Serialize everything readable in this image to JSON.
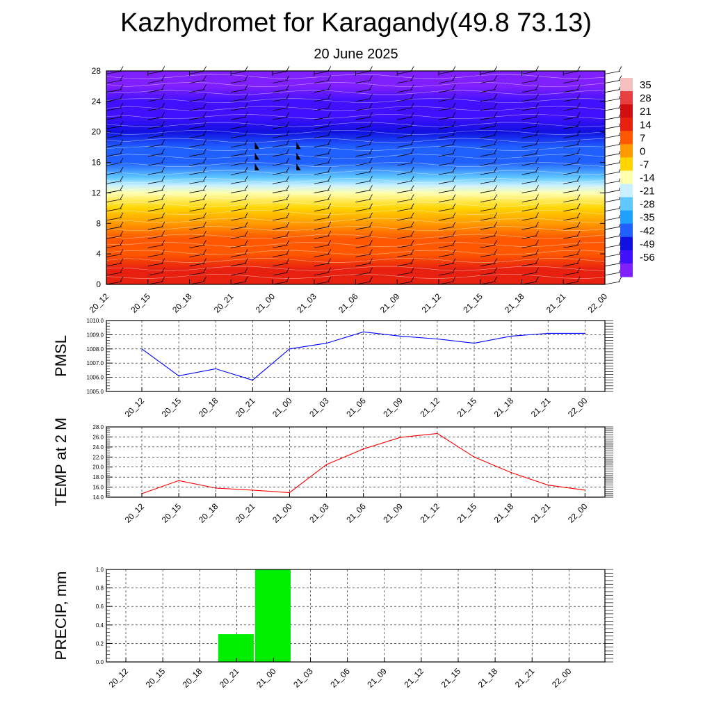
{
  "title": "Kazhydromet for Karagandy(49.8 73.13)",
  "subtitle": "20 June 2025",
  "chart_data": [
    {
      "type": "heatmap",
      "x_tick_labels": [
        "20_12",
        "20_15",
        "20_18",
        "20_21",
        "21_00",
        "21_03",
        "21_06",
        "21_09",
        "21_12",
        "21_15",
        "21_18",
        "21_21",
        "22_00"
      ],
      "y_ticks": [
        0,
        4,
        8,
        12,
        16,
        20,
        24,
        28
      ],
      "ylim": [
        0,
        28
      ],
      "colorbar_labels": [
        "35",
        "28",
        "21",
        "14",
        "7",
        "0",
        "-7",
        "-14",
        "-21",
        "-28",
        "-35",
        "-42",
        "-49",
        "-56"
      ],
      "colorbar_colors": [
        "#f5c0c0",
        "#e84040",
        "#d01010",
        "#e82010",
        "#ff5800",
        "#ff9a00",
        "#ffd400",
        "#ffffb0",
        "#c8f0ff",
        "#60c8ff",
        "#20a0ff",
        "#2060ff",
        "#1010e0",
        "#4010ff",
        "#8020ff"
      ],
      "temperature_profile": [
        {
          "y": 0,
          "value": 17
        },
        {
          "y": 2,
          "value": 14
        },
        {
          "y": 4,
          "value": 10
        },
        {
          "y": 6,
          "value": 6
        },
        {
          "y": 8,
          "value": 2
        },
        {
          "y": 10,
          "value": -3
        },
        {
          "y": 12,
          "value": -12
        },
        {
          "y": 13,
          "value": -18
        },
        {
          "y": 14,
          "value": -26
        },
        {
          "y": 16,
          "value": -34
        },
        {
          "y": 18,
          "value": -40
        },
        {
          "y": 20,
          "value": -44
        },
        {
          "y": 22,
          "value": -47
        },
        {
          "y": 24,
          "value": -50
        },
        {
          "y": 26,
          "value": -54
        },
        {
          "y": 28,
          "value": -56
        }
      ],
      "wind_barb_columns": [
        "20_12",
        "20_15",
        "20_18",
        "20_21",
        "21_00",
        "21_03",
        "21_06",
        "21_09",
        "21_12",
        "21_15",
        "21_18",
        "21_21",
        "22_00"
      ],
      "colors": {
        "contour": "#ffffff",
        "barb": "#000000"
      }
    },
    {
      "type": "line",
      "ylabel": "PMSL",
      "categories": [
        "20_12",
        "20_15",
        "20_18",
        "20_21",
        "21_00",
        "21_03",
        "21_06",
        "21_09",
        "21_12",
        "21_15",
        "21_18",
        "21_21",
        "22_00"
      ],
      "values": [
        1008.0,
        1006.1,
        1006.6,
        1005.8,
        1008.0,
        1008.4,
        1009.2,
        1008.9,
        1008.7,
        1008.4,
        1008.9,
        1009.1,
        1009.1
      ],
      "ylim": [
        1005.0,
        1010.0
      ],
      "y_tick_labels": [
        "1005.0",
        "1006.0",
        "1007.0",
        "1008.0",
        "1009.0",
        "1010.0"
      ],
      "grid": true,
      "color": "#0000ff"
    },
    {
      "type": "line",
      "ylabel": "TEMP at 2 M",
      "categories": [
        "20_12",
        "20_15",
        "20_18",
        "20_21",
        "21_00",
        "21_03",
        "21_06",
        "21_09",
        "21_12",
        "21_15",
        "21_18",
        "21_21",
        "22_00"
      ],
      "values": [
        14.7,
        17.3,
        15.8,
        15.4,
        14.9,
        20.5,
        23.6,
        25.9,
        26.7,
        22.0,
        18.9,
        16.4,
        15.4
      ],
      "ylim": [
        14.0,
        28.0
      ],
      "y_tick_labels": [
        "14.0",
        "16.0",
        "18.0",
        "20.0",
        "22.0",
        "24.0",
        "26.0",
        "28.0"
      ],
      "grid": true,
      "color": "#ff0000"
    },
    {
      "type": "bar",
      "ylabel": "PRECIP, mm",
      "categories": [
        "20_12",
        "20_15",
        "20_18",
        "20_21",
        "21_00",
        "21_03",
        "21_06",
        "21_09",
        "21_12",
        "21_15",
        "21_18",
        "21_21",
        "22_00"
      ],
      "values": [
        0,
        0,
        0,
        0.3,
        1.0,
        0,
        0,
        0,
        0,
        0,
        0,
        0,
        0
      ],
      "ylim": [
        0,
        1.0
      ],
      "y_tick_labels": [
        "0.0",
        "0.2",
        "0.4",
        "0.6",
        "0.8",
        "1.0"
      ],
      "grid": true,
      "color": "#00ee00"
    }
  ]
}
